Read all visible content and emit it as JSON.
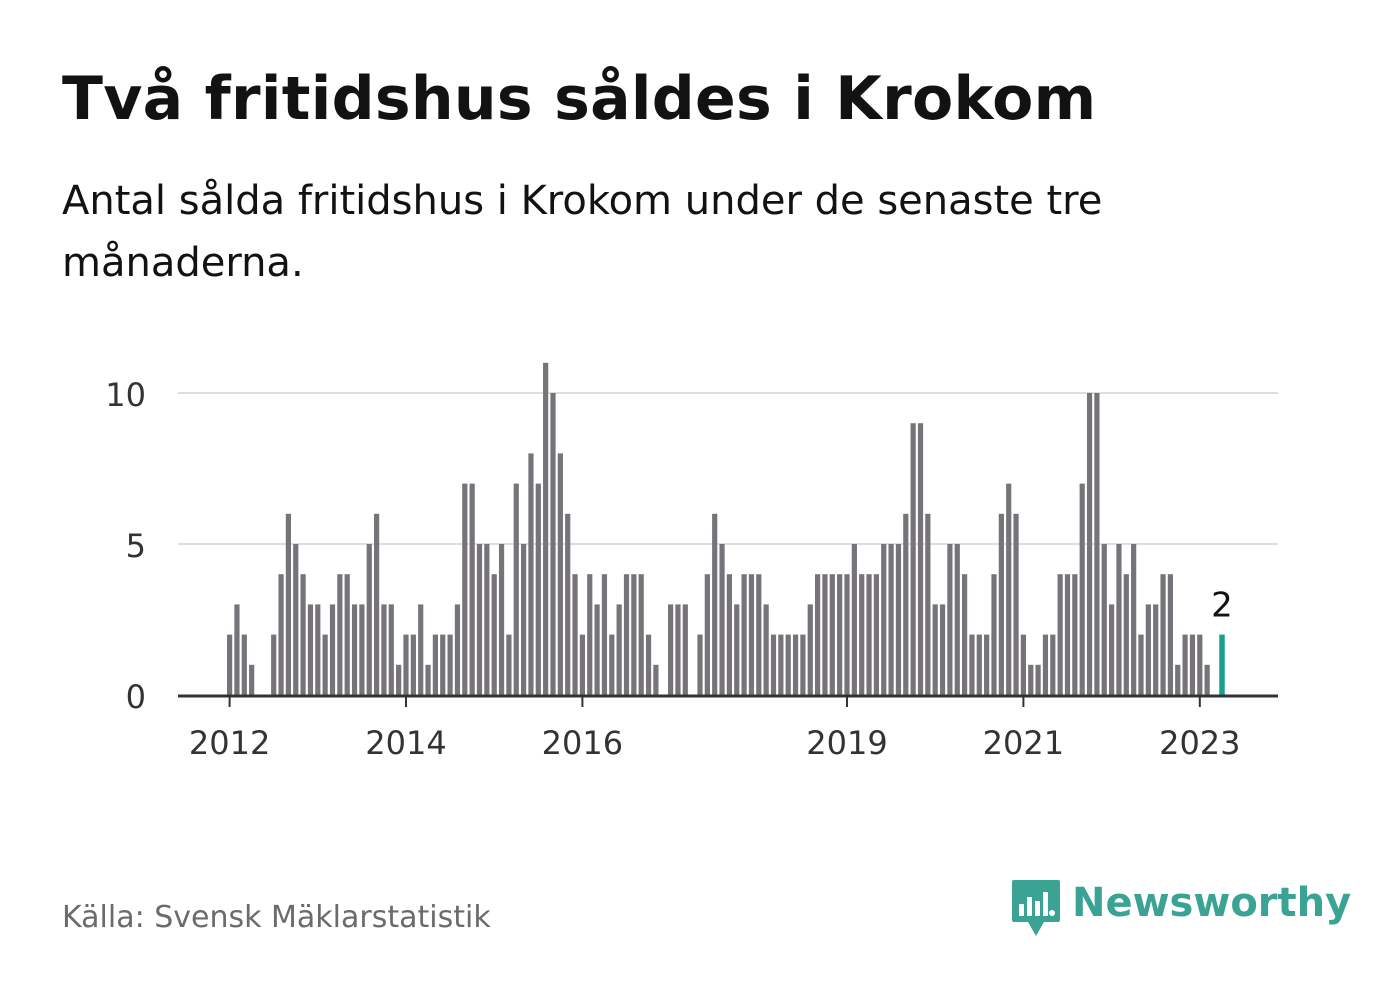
{
  "header": {
    "title": "Två fritidshus såldes i Krokom",
    "subtitle": "Antal sålda fritidshus i Krokom under de senaste tre månaderna."
  },
  "footer": {
    "source": "Källa: Svensk Mäklarstatistik",
    "brand": "Newsworthy"
  },
  "colors": {
    "bar": "#767479",
    "highlight": "#1a9e8f",
    "grid": "#dedede",
    "axis": "#333333",
    "brand": "#3aa394"
  },
  "chart_data": {
    "type": "bar",
    "title": "",
    "xlabel": "",
    "ylabel": "",
    "ylim": [
      0,
      11
    ],
    "yticks": [
      0,
      5,
      10
    ],
    "xticks": [
      "2012",
      "2014",
      "2016",
      "2019",
      "2021",
      "2023"
    ],
    "grid": true,
    "series": [
      {
        "values": [
          2,
          3,
          2,
          1,
          0,
          0,
          2,
          4,
          6,
          5,
          4,
          3,
          3,
          2,
          3,
          4,
          4,
          3,
          3,
          5,
          6,
          3,
          3,
          1,
          2,
          2,
          3,
          1,
          2,
          2,
          2,
          3,
          7,
          7,
          5,
          5,
          4,
          5,
          2,
          7,
          5,
          8,
          7,
          11,
          10,
          8,
          6,
          4,
          2,
          4,
          3,
          4,
          2,
          3,
          4,
          4,
          4,
          2,
          1,
          0,
          3,
          3,
          3,
          0,
          2,
          4,
          6,
          5,
          4,
          3,
          4,
          4,
          4,
          3,
          2,
          2,
          2,
          2,
          2,
          3,
          4,
          4,
          4,
          4,
          4,
          5,
          4,
          4,
          4,
          5,
          5,
          5,
          6,
          9,
          9,
          6,
          3,
          3,
          5,
          5,
          4,
          2,
          2,
          2,
          4,
          6,
          7,
          6,
          2,
          1,
          1,
          2,
          2,
          4,
          4,
          4,
          7,
          10,
          10,
          5,
          3,
          5,
          4,
          5,
          2,
          3,
          3,
          4,
          4,
          1,
          2,
          2,
          2,
          1,
          0,
          2
        ]
      }
    ],
    "highlight": {
      "label": "2",
      "value": 2
    }
  }
}
